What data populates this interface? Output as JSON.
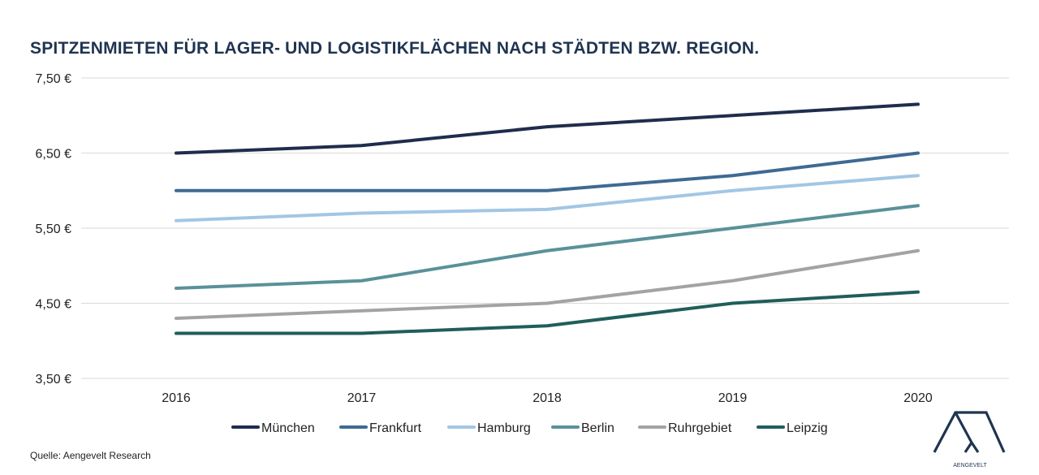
{
  "title": "SPITZENMIETEN FÜR LAGER- UND LOGISTIKFLÄCHEN NACH STÄDTEN BZW. REGION.",
  "source": "Quelle: Aengevelt Research",
  "logo_text": "AENGEVELT",
  "chart_data": {
    "type": "line",
    "title": "SPITZENMIETEN FÜR LAGER- UND LOGISTIKFLÄCHEN NACH STÄDTEN BZW. REGION.",
    "x": [
      "2016",
      "2017",
      "2018",
      "2019",
      "2020"
    ],
    "ylim": [
      3.5,
      7.5
    ],
    "yticks": [
      3.5,
      4.5,
      5.5,
      6.5,
      7.5
    ],
    "ytick_labels": [
      "3,50 €",
      "4,50 €",
      "5,50 €",
      "6,50 €",
      "7,50 €"
    ],
    "grid": true,
    "legend_position": "bottom",
    "series": [
      {
        "name": "München",
        "color": "#1f2d4d",
        "values": [
          6.5,
          6.6,
          6.85,
          7.0,
          7.15
        ]
      },
      {
        "name": "Frankfurt",
        "color": "#3e6a92",
        "values": [
          6.0,
          6.0,
          6.0,
          6.2,
          6.5
        ]
      },
      {
        "name": "Hamburg",
        "color": "#a3c6e4",
        "values": [
          5.6,
          5.7,
          5.75,
          6.0,
          6.2
        ]
      },
      {
        "name": "Berlin",
        "color": "#5a9199",
        "values": [
          4.7,
          4.8,
          5.2,
          5.5,
          5.8
        ]
      },
      {
        "name": "Ruhrgebiet",
        "color": "#a3a3a6",
        "values": [
          4.3,
          4.4,
          4.5,
          4.8,
          5.2
        ]
      },
      {
        "name": "Leipzig",
        "color": "#1f5e5b",
        "values": [
          4.1,
          4.1,
          4.2,
          4.5,
          4.65
        ]
      }
    ]
  }
}
